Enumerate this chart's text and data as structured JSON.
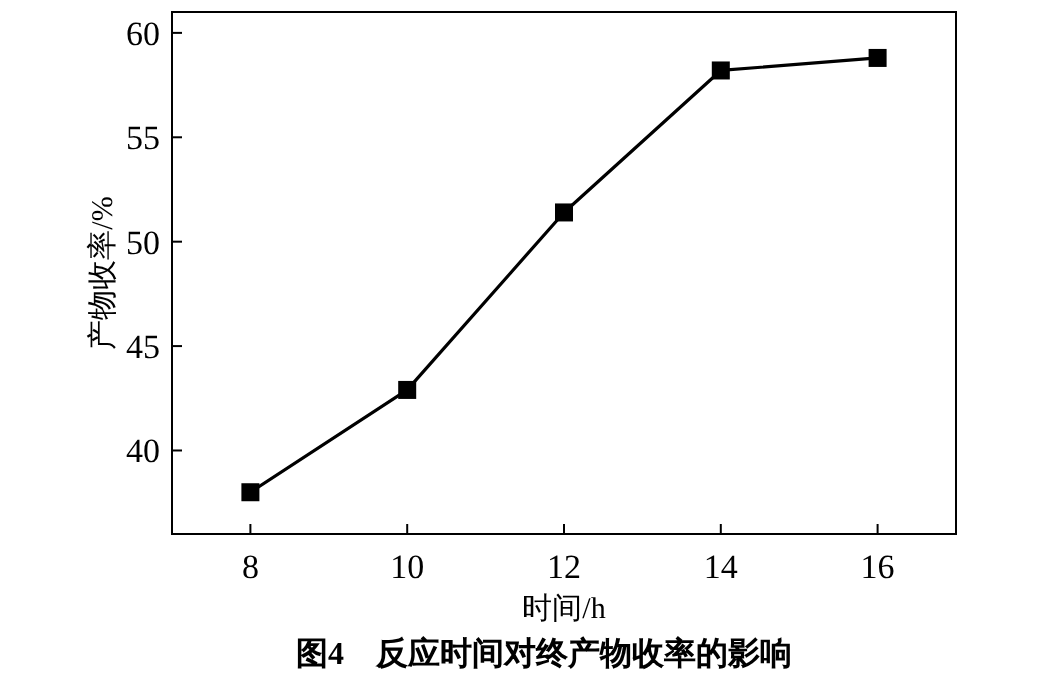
{
  "chart_data": {
    "type": "line",
    "title": "图4　反应时间对终产物收率的影响",
    "xlabel": "时间/h",
    "ylabel": "产物收率/%",
    "x": [
      8,
      10,
      12,
      14,
      16
    ],
    "series": [
      {
        "color": "#000000",
        "values": [
          38.0,
          42.9,
          51.4,
          58.2,
          58.8
        ]
      }
    ],
    "xlim": [
      7,
      17
    ],
    "ylim": [
      36,
      61
    ],
    "xticks": [
      8,
      10,
      12,
      14,
      16
    ],
    "yticks": [
      40,
      45,
      50,
      55,
      60
    ],
    "marker": "square",
    "line_style": "solid",
    "grid": false
  }
}
